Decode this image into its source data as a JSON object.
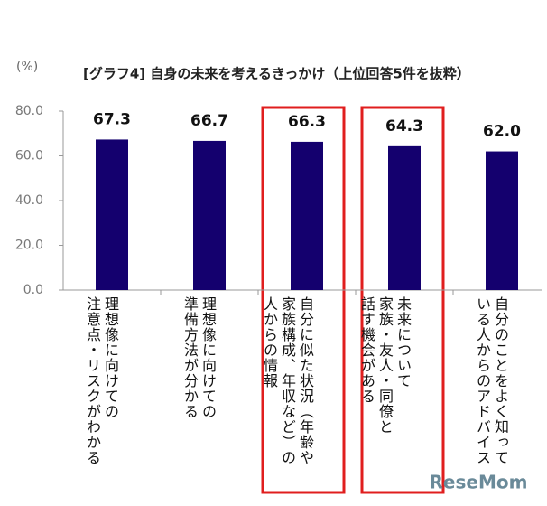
{
  "chart_data": {
    "type": "bar",
    "title": "[グラフ4] 自身の未来を考えるきっかけ（上位回答5件を抜粋）",
    "y_label": "(%)",
    "categories": [
      "理想像に向けての\n注意点・リスクがわかる",
      "理想像に向けての\n準備方法が分かる",
      "自分に似た状況（年齢や\n家族構成、年収など）の\n人からの情報",
      "未来について\n家族・友人・同僚と\n話す機会がある",
      "自分のことをよく知って\nいる人からのアドバイス"
    ],
    "values": [
      67.3,
      66.7,
      66.3,
      64.3,
      62.0
    ],
    "value_labels": [
      "67.3",
      "66.7",
      "66.3",
      "64.3",
      "62.0"
    ],
    "color": "#14006e",
    "ylim": [
      0,
      80
    ],
    "yticks": [
      {
        "value": 0,
        "label": "0.0"
      },
      {
        "value": 20,
        "label": "20.0"
      },
      {
        "value": 40,
        "label": "40.0"
      },
      {
        "value": 60,
        "label": "60.0"
      },
      {
        "value": 80,
        "label": "80.0"
      }
    ],
    "watermark": "ReseMom"
  }
}
